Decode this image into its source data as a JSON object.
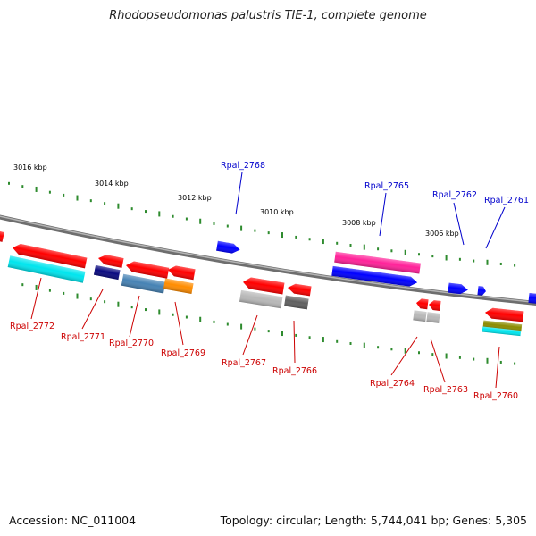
{
  "title": "Rhodopseudomonas palustris TIE-1, complete genome",
  "footer": {
    "accession": "Accession: NC_011004",
    "topology": "Topology: circular; Length: 5,744,041 bp; Genes: 5,305"
  },
  "colors": {
    "backbone": "#8c8c8c",
    "ticks": "#2e8b2e",
    "forward_gene": "#0000ff",
    "reverse_gene": "#ff0000",
    "forward_label": "#0000cc",
    "reverse_label": "#cc0000"
  },
  "kbp_labels": [
    "3016 kbp",
    "3014 kbp",
    "3012 kbp",
    "3010 kbp",
    "3008 kbp",
    "3006 kbp"
  ],
  "genes_forward": [
    {
      "id": "Rpal_2768",
      "color": "#0000ff"
    },
    {
      "id": "Rpal_2765",
      "color": "#0000ff",
      "product_color": "#ff2299"
    },
    {
      "id": "Rpal_2762",
      "color": "#0000ff"
    },
    {
      "id": "Rpal_2761",
      "color": "#0000ff"
    }
  ],
  "genes_reverse": [
    {
      "id": "Rpal_2772",
      "color": "#ff0000",
      "product_color": "#00e5ee"
    },
    {
      "id": "Rpal_2771",
      "color": "#ff0000",
      "product_color": "#0a0a80"
    },
    {
      "id": "Rpal_2770",
      "color": "#ff0000",
      "product_color": "#4682b4"
    },
    {
      "id": "Rpal_2769",
      "color": "#ff0000",
      "product_color": "#ff8c00"
    },
    {
      "id": "Rpal_2767",
      "color": "#ff0000",
      "product_color": "#b8b8b8"
    },
    {
      "id": "Rpal_2766",
      "color": "#ff0000",
      "product_color": "#606060"
    },
    {
      "id": "Rpal_2764",
      "color": "#ff0000",
      "product_color": "#b8b8b8"
    },
    {
      "id": "Rpal_2763",
      "color": "#ff0000",
      "product_color": "#b8b8b8"
    },
    {
      "id": "Rpal_2760",
      "color": "#ff0000",
      "product_color": "#8b8b00"
    }
  ]
}
